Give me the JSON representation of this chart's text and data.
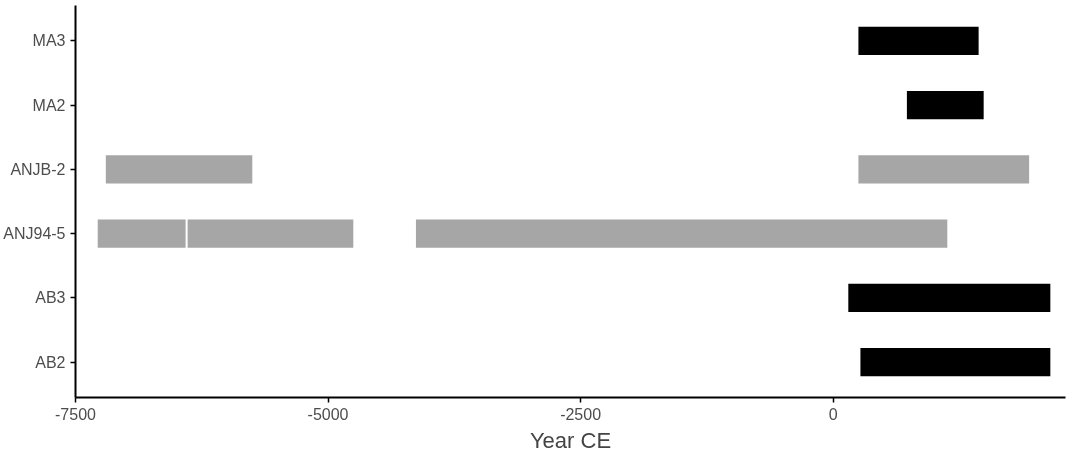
{
  "chart_data": {
    "type": "bar",
    "orientation": "horizontal",
    "xlabel": "Year CE",
    "categories": [
      "MA3",
      "MA2",
      "ANJB-2",
      "ANJ94-5",
      "AB3",
      "AB2"
    ],
    "series": [
      {
        "base": [
          250,
          730,
          -7200,
          -7280,
          150,
          270
        ],
        "values": [
          1190,
          760,
          1450,
          870,
          2000,
          1880
        ],
        "colors": [
          "#000000",
          "#000000",
          "#a6a6a6",
          "#a6a6a6",
          "#000000",
          "#000000"
        ]
      },
      {
        "base": [
          null,
          null,
          250,
          -6390,
          null,
          null
        ],
        "values": [
          null,
          null,
          1690,
          1640,
          null,
          null
        ],
        "colors": [
          null,
          null,
          "#a6a6a6",
          "#a6a6a6",
          null,
          null
        ]
      },
      {
        "base": [
          null,
          null,
          null,
          -4130,
          null,
          null
        ],
        "values": [
          null,
          null,
          null,
          5260,
          null,
          null
        ],
        "colors": [
          null,
          null,
          null,
          "#a6a6a6",
          null,
          null
        ]
      }
    ],
    "xlim": [
      -7500,
      2300
    ],
    "xticks": [
      -7500,
      -5000,
      -2500,
      0
    ],
    "grid": false
  }
}
